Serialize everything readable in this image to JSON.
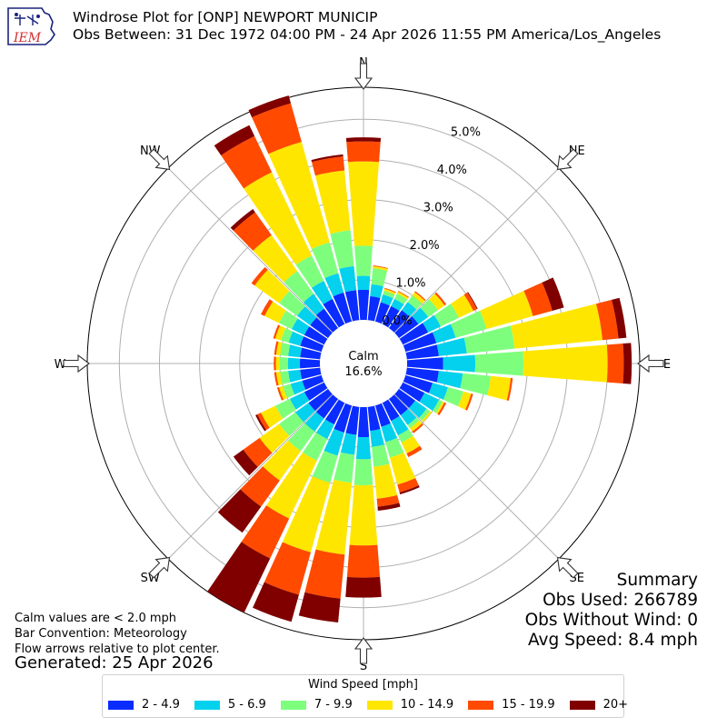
{
  "header": {
    "logo_text": "IEM",
    "title": "Windrose Plot for [ONP] NEWPORT MUNICIP",
    "subtitle": "Obs Between: 31 Dec 1972 04:00 PM - 24 Apr 2026 11:55 PM America/Los_Angeles"
  },
  "chart_data": {
    "type": "windrose",
    "direction_labels": [
      "N",
      "NE",
      "E",
      "SE",
      "S",
      "SW",
      "W",
      "NW"
    ],
    "radial_ticks": [
      0,
      1,
      2,
      3,
      4,
      5
    ],
    "radial_tick_labels": [
      "0.0%",
      "1.0%",
      "2.0%",
      "3.0%",
      "4.0%",
      "5.0%"
    ],
    "rmax": 5.8,
    "calm": {
      "label": "Calm",
      "value": "16.6%"
    },
    "bins": [
      {
        "label": "2 - 4.9",
        "color": "#0a2cff"
      },
      {
        "label": "5 - 6.9",
        "color": "#03d1ed"
      },
      {
        "label": "7 - 9.9",
        "color": "#7dff7d"
      },
      {
        "label": "10 - 14.9",
        "color": "#ffe600"
      },
      {
        "label": "15 - 19.9",
        "color": "#ff4a00"
      },
      {
        "label": "20+",
        "color": "#800000"
      }
    ],
    "sectors": [
      {
        "dir": 0,
        "values": [
          0.75,
          0.35,
          0.75,
          2.1,
          0.5,
          0.1
        ]
      },
      {
        "dir": 10,
        "values": [
          0.6,
          0.3,
          0.4,
          0.05,
          0.02,
          0.0
        ]
      },
      {
        "dir": 20,
        "values": [
          0.5,
          0.2,
          0.1,
          0.05,
          0.02,
          0.0
        ]
      },
      {
        "dir": 30,
        "values": [
          0.5,
          0.2,
          0.15,
          0.05,
          0.02,
          0.0
        ]
      },
      {
        "dir": 40,
        "values": [
          0.55,
          0.25,
          0.2,
          0.1,
          0.03,
          0.0
        ]
      },
      {
        "dir": 50,
        "values": [
          0.6,
          0.3,
          0.3,
          0.2,
          0.05,
          0.0
        ]
      },
      {
        "dir": 60,
        "values": [
          0.7,
          0.35,
          0.5,
          0.4,
          0.1,
          0.02
        ]
      },
      {
        "dir": 70,
        "values": [
          0.8,
          0.5,
          0.8,
          1.2,
          0.5,
          0.3
        ]
      },
      {
        "dir": 80,
        "values": [
          0.8,
          0.7,
          1.2,
          2.2,
          0.4,
          0.2
        ]
      },
      {
        "dir": 90,
        "values": [
          0.9,
          0.8,
          1.2,
          2.1,
          0.4,
          0.2
        ]
      },
      {
        "dir": 100,
        "values": [
          0.8,
          0.6,
          0.7,
          0.5,
          0.05,
          0.0
        ]
      },
      {
        "dir": 110,
        "values": [
          0.7,
          0.4,
          0.4,
          0.2,
          0.05,
          0.0
        ]
      },
      {
        "dir": 120,
        "values": [
          0.6,
          0.4,
          0.1,
          0.05,
          0.05,
          0.0
        ]
      },
      {
        "dir": 130,
        "values": [
          0.5,
          0.35,
          0.1,
          0.05,
          0.0,
          0.0
        ]
      },
      {
        "dir": 140,
        "values": [
          0.5,
          0.3,
          0.1,
          0.1,
          0.05,
          0.0
        ]
      },
      {
        "dir": 150,
        "values": [
          0.5,
          0.4,
          0.2,
          0.3,
          0.1,
          0.0
        ]
      },
      {
        "dir": 160,
        "values": [
          0.55,
          0.4,
          0.4,
          0.7,
          0.2,
          0.05
        ]
      },
      {
        "dir": 170,
        "values": [
          0.6,
          0.4,
          0.5,
          0.8,
          0.2,
          0.1
        ]
      },
      {
        "dir": 180,
        "values": [
          0.75,
          0.55,
          0.65,
          1.5,
          0.8,
          0.5
        ]
      },
      {
        "dir": 190,
        "values": [
          0.7,
          0.5,
          0.7,
          1.8,
          1.1,
          0.6
        ]
      },
      {
        "dir": 200,
        "values": [
          0.7,
          0.6,
          0.7,
          1.8,
          1.1,
          0.7
        ]
      },
      {
        "dir": 210,
        "values": [
          0.6,
          0.4,
          0.6,
          1.6,
          1.1,
          1.5
        ]
      },
      {
        "dir": 220,
        "values": [
          0.6,
          0.4,
          0.6,
          0.9,
          0.8,
          0.8
        ]
      },
      {
        "dir": 230,
        "values": [
          0.6,
          0.4,
          0.5,
          0.6,
          0.5,
          0.3
        ]
      },
      {
        "dir": 240,
        "values": [
          0.55,
          0.4,
          0.4,
          0.4,
          0.1,
          0.05
        ]
      },
      {
        "dir": 250,
        "values": [
          0.5,
          0.3,
          0.2,
          0.1,
          0.05,
          0.0
        ]
      },
      {
        "dir": 260,
        "values": [
          0.5,
          0.3,
          0.2,
          0.1,
          0.05,
          0.0
        ]
      },
      {
        "dir": 270,
        "values": [
          0.5,
          0.3,
          0.2,
          0.1,
          0.05,
          0.0
        ]
      },
      {
        "dir": 280,
        "values": [
          0.5,
          0.3,
          0.2,
          0.1,
          0.05,
          0.0
        ]
      },
      {
        "dir": 290,
        "values": [
          0.55,
          0.3,
          0.2,
          0.15,
          0.05,
          0.0
        ]
      },
      {
        "dir": 300,
        "values": [
          0.55,
          0.35,
          0.35,
          0.4,
          0.1,
          0.0
        ]
      },
      {
        "dir": 310,
        "values": [
          0.55,
          0.4,
          0.55,
          0.75,
          0.1,
          0.0
        ]
      },
      {
        "dir": 320,
        "values": [
          0.6,
          0.45,
          0.7,
          1.1,
          0.7,
          0.1
        ]
      },
      {
        "dir": 330,
        "values": [
          0.7,
          0.5,
          0.7,
          2.3,
          1.0,
          0.3
        ]
      },
      {
        "dir": 340,
        "values": [
          0.75,
          0.5,
          0.8,
          2.6,
          1.0,
          0.2
        ]
      },
      {
        "dir": 350,
        "values": [
          0.75,
          0.6,
          0.9,
          1.5,
          0.35,
          0.05
        ]
      }
    ]
  },
  "notes": {
    "calm_note": "Calm values are < 2.0 mph",
    "bar_convention": "Bar Convention: Meteorology",
    "flow_note": "Flow arrows relative to plot center.",
    "generated": "Generated: 25 Apr 2026"
  },
  "summary": {
    "title": "Summary",
    "obs_used": "Obs Used: 266789",
    "obs_without_wind": "Obs Without Wind: 0",
    "avg_speed": "Avg Speed: 8.4 mph"
  },
  "legend": {
    "title": "Wind Speed [mph]"
  }
}
